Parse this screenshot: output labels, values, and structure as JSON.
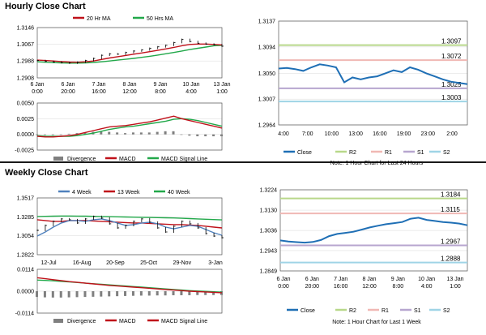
{
  "sections": {
    "hourly_title": "Hourly Close Chart",
    "weekly_title": "Weekly Close Chart"
  },
  "colors": {
    "ma_short": "#c0111a",
    "ma_long": "#22a84a",
    "price": "#000000",
    "close_line": "#1f6fb5",
    "r2": "#b8d88a",
    "r1": "#f0b8b4",
    "s1": "#b7a6cf",
    "s2": "#9fd4e6",
    "divergence": "#7f7f7f",
    "macd": "#c0111a",
    "signal": "#22a84a",
    "week4": "#4f81bd",
    "week13": "#c0111a",
    "week40": "#22a84a"
  },
  "chart_data": [
    {
      "id": "hourly_price",
      "type": "line",
      "legend": [
        "20 Hr MA",
        "50 Hrs MA"
      ],
      "legend_placement": "top",
      "yticks": [
        "1.3146",
        "1.3067",
        "1.2988",
        "1.2908"
      ],
      "ylim": [
        1.2908,
        1.3146
      ],
      "xticks": [
        [
          "6 Jan",
          "0:00"
        ],
        [
          "6 Jan",
          "20:00"
        ],
        [
          "7 Jan",
          "16:00"
        ],
        [
          "8 Jan",
          "12:00"
        ],
        [
          "9 Jan",
          "8:00"
        ],
        [
          "10 Jan",
          "4:00"
        ],
        [
          "13 Jan",
          "1:00"
        ]
      ],
      "price": [
        1.299,
        1.2986,
        1.2983,
        1.298,
        1.2978,
        1.2982,
        1.299,
        1.3,
        1.3015,
        1.3022,
        1.302,
        1.3028,
        1.3035,
        1.304,
        1.3048,
        1.3055,
        1.3062,
        1.3075,
        1.309,
        1.308,
        1.3072,
        1.3068,
        1.3065,
        1.3058
      ],
      "ma20": [
        1.2992,
        1.299,
        1.2988,
        1.2985,
        1.2983,
        1.2982,
        1.2984,
        1.2988,
        1.2995,
        1.3002,
        1.3008,
        1.3014,
        1.302,
        1.3026,
        1.3032,
        1.3038,
        1.3045,
        1.3052,
        1.306,
        1.3066,
        1.3068,
        1.3068,
        1.3066,
        1.3064
      ],
      "ma50": [
        1.2984,
        1.2982,
        1.298,
        1.2979,
        1.2978,
        1.2978,
        1.2979,
        1.2981,
        1.2984,
        1.2988,
        1.2992,
        1.2996,
        1.3,
        1.3005,
        1.301,
        1.3016,
        1.3022,
        1.3028,
        1.3035,
        1.3042,
        1.3048,
        1.3054,
        1.306,
        1.3062
      ]
    },
    {
      "id": "hourly_macd",
      "type": "line",
      "legend": [
        "Divergence",
        "MACD",
        "MACD Signal Line"
      ],
      "legend_placement": "bottom",
      "yticks": [
        "0.0050",
        "0.0025",
        "0.0000",
        "-0.0025"
      ],
      "ylim": [
        -0.0025,
        0.005
      ],
      "macd": [
        -0.0003,
        -0.0004,
        -0.0004,
        -0.0003,
        -0.0002,
        0.0,
        0.0003,
        0.0006,
        0.0009,
        0.0012,
        0.0013,
        0.0014,
        0.0016,
        0.0018,
        0.002,
        0.0023,
        0.0026,
        0.0029,
        0.0025,
        0.0022,
        0.0019,
        0.0016,
        0.0013,
        0.001
      ],
      "signal": [
        -0.0002,
        -0.0003,
        -0.0003,
        -0.0003,
        -0.0003,
        -0.0002,
        0.0,
        0.0002,
        0.0005,
        0.0008,
        0.001,
        0.0012,
        0.0013,
        0.0015,
        0.0017,
        0.0019,
        0.0021,
        0.0024,
        0.0025,
        0.0024,
        0.0022,
        0.0019,
        0.0016,
        0.0013
      ],
      "divergence": [
        -0.0001,
        -0.0001,
        -0.0001,
        0.0,
        0.0001,
        0.0002,
        0.0003,
        0.0004,
        0.0004,
        0.0004,
        0.0003,
        0.0002,
        0.0003,
        0.0003,
        0.0003,
        0.0004,
        0.0005,
        0.0005,
        0.0,
        -0.0002,
        -0.0003,
        -0.0003,
        -0.0003,
        -0.0003
      ]
    },
    {
      "id": "hourly_close_24h",
      "type": "line",
      "yticks": [
        "1.3137",
        "1.3094",
        "1.3050",
        "1.3007",
        "1.2964"
      ],
      "ylim": [
        1.2964,
        1.3137
      ],
      "xticks": [
        "4:00",
        "7:00",
        "10:00",
        "13:00",
        "16:00",
        "19:00",
        "23:00",
        "2:00"
      ],
      "close": [
        1.3058,
        1.3059,
        1.3057,
        1.3054,
        1.306,
        1.3065,
        1.3063,
        1.306,
        1.3035,
        1.3043,
        1.304,
        1.3043,
        1.3045,
        1.305,
        1.3055,
        1.3052,
        1.306,
        1.3056,
        1.305,
        1.3045,
        1.304,
        1.3036,
        1.3034,
        1.3032
      ],
      "levels": [
        {
          "name": "R2",
          "value": "1.3097"
        },
        {
          "name": "R1",
          "value": "1.3072"
        },
        {
          "name": "S1",
          "value": "1.3025"
        },
        {
          "name": "S2",
          "value": "1.3003"
        }
      ],
      "legend": [
        "Close",
        "R2",
        "R1",
        "S1",
        "S2"
      ],
      "note": "Note: 1 Hour Chart for Last 24 Hours"
    },
    {
      "id": "weekly_price",
      "type": "line",
      "legend": [
        "4 Week",
        "13 Week",
        "40 Week"
      ],
      "legend_placement": "top",
      "yticks": [
        "1.3517",
        "1.3285",
        "1.3054",
        "1.2822"
      ],
      "ylim": [
        1.2822,
        1.3517
      ],
      "xticks": [
        "12-Jul",
        "16-Aug",
        "20-Sep",
        "25-Oct",
        "29-Nov",
        "3-Jan"
      ],
      "price": [
        1.312,
        1.318,
        1.323,
        1.326,
        1.325,
        1.321,
        1.326,
        1.329,
        1.327,
        1.32,
        1.315,
        1.318,
        1.323,
        1.326,
        1.322,
        1.315,
        1.31,
        1.317,
        1.323,
        1.32,
        1.315,
        1.308,
        1.305,
        1.303
      ],
      "week4": [
        1.305,
        1.31,
        1.316,
        1.321,
        1.324,
        1.324,
        1.323,
        1.325,
        1.326,
        1.324,
        1.321,
        1.318,
        1.319,
        1.321,
        1.322,
        1.32,
        1.316,
        1.314,
        1.316,
        1.318,
        1.317,
        1.313,
        1.309,
        1.306
      ],
      "week13": [
        1.325,
        1.324,
        1.323,
        1.323,
        1.324,
        1.324,
        1.324,
        1.3235,
        1.323,
        1.3225,
        1.322,
        1.3215,
        1.321,
        1.321,
        1.3205,
        1.32,
        1.3195,
        1.319,
        1.319,
        1.3185,
        1.318,
        1.317,
        1.316,
        1.315
      ],
      "week40": [
        1.329,
        1.3292,
        1.3294,
        1.3296,
        1.3296,
        1.3295,
        1.3294,
        1.3292,
        1.329,
        1.3288,
        1.3286,
        1.3284,
        1.3282,
        1.328,
        1.3278,
        1.3276,
        1.3274,
        1.3272,
        1.3268,
        1.3264,
        1.326,
        1.3256,
        1.3252,
        1.3248
      ]
    },
    {
      "id": "weekly_macd",
      "type": "line",
      "legend": [
        "Divergence",
        "MACD",
        "MACD Signal Line"
      ],
      "legend_placement": "bottom",
      "yticks": [
        "0.0114",
        "0.0000",
        "-0.0114"
      ],
      "ylim": [
        -0.0114,
        0.0114
      ],
      "macd": [
        0.007,
        0.0065,
        0.006,
        0.0055,
        0.005,
        0.0046,
        0.0042,
        0.0038,
        0.0034,
        0.003,
        0.0027,
        0.0024,
        0.0021,
        0.0018,
        0.0015,
        0.0012,
        0.0009,
        0.0006,
        0.0003,
        0.0,
        -0.0002,
        -0.0004,
        -0.0006,
        -0.0008
      ],
      "signal": [
        0.0058,
        0.0056,
        0.0054,
        0.0051,
        0.0048,
        0.0045,
        0.0042,
        0.0039,
        0.0036,
        0.0033,
        0.003,
        0.0027,
        0.0024,
        0.0021,
        0.0018,
        0.0015,
        0.0012,
        0.0009,
        0.0006,
        0.0003,
        0.0001,
        -0.0001,
        -0.0003,
        -0.0005
      ],
      "divergence": [
        -0.003,
        -0.0032,
        -0.0033,
        -0.0033,
        -0.0032,
        -0.0031,
        -0.003,
        -0.0029,
        -0.0028,
        -0.0027,
        -0.0026,
        -0.0025,
        -0.0024,
        -0.0023,
        -0.0023,
        -0.0022,
        -0.0022,
        -0.0021,
        -0.0021,
        -0.0021,
        -0.002,
        -0.002,
        -0.002,
        -0.002
      ]
    },
    {
      "id": "weekly_close_1w",
      "type": "line",
      "yticks": [
        "1.3224",
        "1.3130",
        "1.3036",
        "1.2943",
        "1.2849"
      ],
      "ylim": [
        1.2849,
        1.3224
      ],
      "xticks": [
        [
          "6 Jan",
          "0:00"
        ],
        [
          "6 Jan",
          "20:00"
        ],
        [
          "7 Jan",
          "16:00"
        ],
        [
          "8 Jan",
          "12:00"
        ],
        [
          "9 Jan",
          "8:00"
        ],
        [
          "10 Jan",
          "4:00"
        ],
        [
          "13 Jan",
          "1:00"
        ]
      ],
      "close": [
        1.299,
        1.2985,
        1.2982,
        1.298,
        1.2983,
        1.2992,
        1.301,
        1.302,
        1.3025,
        1.303,
        1.304,
        1.305,
        1.3058,
        1.3065,
        1.307,
        1.3075,
        1.309,
        1.3095,
        1.3085,
        1.308,
        1.3075,
        1.3072,
        1.3068,
        1.306
      ],
      "levels": [
        {
          "name": "R2",
          "value": "1.3184"
        },
        {
          "name": "R1",
          "value": "1.3115"
        },
        {
          "name": "S1",
          "value": "1.2967"
        },
        {
          "name": "S2",
          "value": "1.2888"
        }
      ],
      "legend": [
        "Close",
        "R2",
        "R1",
        "S1",
        "S2"
      ],
      "note": "Note: 1 Hour Chart for Last 1 Week"
    }
  ]
}
